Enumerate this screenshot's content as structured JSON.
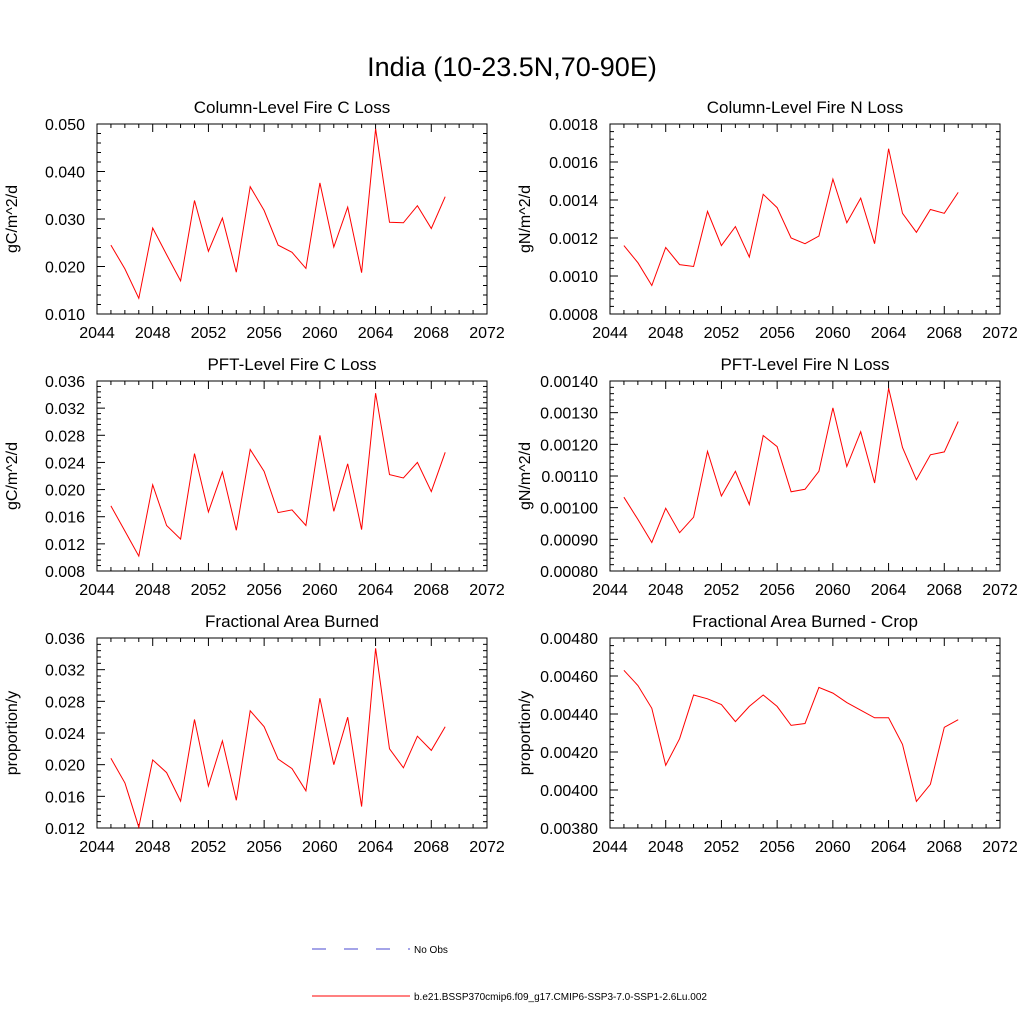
{
  "figure": {
    "title": "India (10-23.5N,70-90E)"
  },
  "legend": {
    "entries": [
      {
        "label": "No Obs",
        "color": "#4a4ad0",
        "dash": true
      },
      {
        "label": "b.e21.BSSP370cmip6.f09_g17.CMIP6-SSP3-7.0-SSP1-2.6Lu.002",
        "color": "#ff0000",
        "dash": false
      }
    ]
  },
  "chart_data": [
    {
      "type": "line",
      "title": "Column-Level Fire C Loss",
      "ylabel": "gC/m^2/d",
      "xlim": [
        2044,
        2072
      ],
      "xticks": [
        "2044",
        "2048",
        "2052",
        "2056",
        "2060",
        "2064",
        "2068",
        "2072"
      ],
      "ylim": [
        0.01,
        0.05
      ],
      "yticks": [
        "0.010",
        "0.020",
        "0.030",
        "0.040",
        "0.050"
      ],
      "color": "#ff0000",
      "x": [
        2045,
        2046,
        2047,
        2048,
        2049,
        2050,
        2051,
        2052,
        2053,
        2054,
        2055,
        2056,
        2057,
        2058,
        2059,
        2060,
        2061,
        2062,
        2063,
        2064,
        2065,
        2066,
        2067,
        2068,
        2069
      ],
      "values": [
        0.0245,
        0.0195,
        0.0133,
        0.0281,
        0.0225,
        0.017,
        0.0339,
        0.0232,
        0.0302,
        0.0188,
        0.0368,
        0.0318,
        0.0245,
        0.023,
        0.0196,
        0.0376,
        0.0241,
        0.0325,
        0.0187,
        0.049,
        0.0293,
        0.0292,
        0.0328,
        0.028,
        0.0347
      ]
    },
    {
      "type": "line",
      "title": "Column-Level Fire N Loss",
      "ylabel": "gN/m^2/d",
      "xlim": [
        2044,
        2072
      ],
      "xticks": [
        "2044",
        "2048",
        "2052",
        "2056",
        "2060",
        "2064",
        "2068",
        "2072"
      ],
      "ylim": [
        0.0008,
        0.0018
      ],
      "yticks": [
        "0.0008",
        "0.0010",
        "0.0012",
        "0.0014",
        "0.0016",
        "0.0018"
      ],
      "color": "#ff0000",
      "x": [
        2045,
        2046,
        2047,
        2048,
        2049,
        2050,
        2051,
        2052,
        2053,
        2054,
        2055,
        2056,
        2057,
        2058,
        2059,
        2060,
        2061,
        2062,
        2063,
        2064,
        2065,
        2066,
        2067,
        2068,
        2069
      ],
      "values": [
        0.00116,
        0.00107,
        0.00095,
        0.00115,
        0.00106,
        0.00105,
        0.00134,
        0.00116,
        0.00126,
        0.0011,
        0.00143,
        0.00136,
        0.0012,
        0.00117,
        0.00121,
        0.00151,
        0.00128,
        0.00141,
        0.00117,
        0.00167,
        0.00133,
        0.00123,
        0.00135,
        0.00133,
        0.00144
      ]
    },
    {
      "type": "line",
      "title": "PFT-Level Fire C Loss",
      "ylabel": "gC/m^2/d",
      "xlim": [
        2044,
        2072
      ],
      "xticks": [
        "2044",
        "2048",
        "2052",
        "2056",
        "2060",
        "2064",
        "2068",
        "2072"
      ],
      "ylim": [
        0.008,
        0.036
      ],
      "yticks": [
        "0.008",
        "0.012",
        "0.016",
        "0.020",
        "0.024",
        "0.028",
        "0.032",
        "0.036"
      ],
      "color": "#ff0000",
      "x": [
        2045,
        2046,
        2047,
        2048,
        2049,
        2050,
        2051,
        2052,
        2053,
        2054,
        2055,
        2056,
        2057,
        2058,
        2059,
        2060,
        2061,
        2062,
        2063,
        2064,
        2065,
        2066,
        2067,
        2068,
        2069
      ],
      "values": [
        0.0176,
        0.0139,
        0.0102,
        0.0207,
        0.0147,
        0.0127,
        0.0253,
        0.0167,
        0.0226,
        0.014,
        0.0259,
        0.0227,
        0.0166,
        0.017,
        0.0147,
        0.028,
        0.0168,
        0.0238,
        0.0141,
        0.0342,
        0.0222,
        0.0217,
        0.024,
        0.0197,
        0.0255
      ]
    },
    {
      "type": "line",
      "title": "PFT-Level Fire N Loss",
      "ylabel": "gN/m^2/d",
      "xlim": [
        2044,
        2072
      ],
      "xticks": [
        "2044",
        "2048",
        "2052",
        "2056",
        "2060",
        "2064",
        "2068",
        "2072"
      ],
      "ylim": [
        0.0008,
        0.0014
      ],
      "yticks": [
        "0.00080",
        "0.00090",
        "0.00100",
        "0.00110",
        "0.00120",
        "0.00130",
        "0.00140"
      ],
      "color": "#ff0000",
      "x": [
        2045,
        2046,
        2047,
        2048,
        2049,
        2050,
        2051,
        2052,
        2053,
        2054,
        2055,
        2056,
        2057,
        2058,
        2059,
        2060,
        2061,
        2062,
        2063,
        2064,
        2065,
        2066,
        2067,
        2068,
        2069
      ],
      "values": [
        0.001033,
        0.000963,
        0.00089,
        0.000998,
        0.000921,
        0.00097,
        0.001178,
        0.001037,
        0.001115,
        0.00101,
        0.001228,
        0.001193,
        0.00105,
        0.001058,
        0.001115,
        0.001315,
        0.00113,
        0.00124,
        0.001078,
        0.001377,
        0.00119,
        0.001088,
        0.001167,
        0.001176,
        0.001272
      ]
    },
    {
      "type": "line",
      "title": "Fractional Area Burned",
      "ylabel": "proportion/y",
      "xlim": [
        2044,
        2072
      ],
      "xticks": [
        "2044",
        "2048",
        "2052",
        "2056",
        "2060",
        "2064",
        "2068",
        "2072"
      ],
      "ylim": [
        0.012,
        0.036
      ],
      "yticks": [
        "0.012",
        "0.016",
        "0.020",
        "0.024",
        "0.028",
        "0.032",
        "0.036"
      ],
      "color": "#ff0000",
      "x": [
        2045,
        2046,
        2047,
        2048,
        2049,
        2050,
        2051,
        2052,
        2053,
        2054,
        2055,
        2056,
        2057,
        2058,
        2059,
        2060,
        2061,
        2062,
        2063,
        2064,
        2065,
        2066,
        2067,
        2068,
        2069
      ],
      "values": [
        0.0208,
        0.0177,
        0.0121,
        0.0206,
        0.019,
        0.0154,
        0.0257,
        0.0173,
        0.023,
        0.0155,
        0.0268,
        0.0248,
        0.0207,
        0.0195,
        0.0167,
        0.0284,
        0.02,
        0.026,
        0.0147,
        0.0347,
        0.022,
        0.0196,
        0.0236,
        0.0218,
        0.0248
      ]
    },
    {
      "type": "line",
      "title": "Fractional Area Burned - Crop",
      "ylabel": "proportion/y",
      "xlim": [
        2044,
        2072
      ],
      "xticks": [
        "2044",
        "2048",
        "2052",
        "2056",
        "2060",
        "2064",
        "2068",
        "2072"
      ],
      "ylim": [
        0.0038,
        0.0048
      ],
      "yticks": [
        "0.00380",
        "0.00400",
        "0.00420",
        "0.00440",
        "0.00460",
        "0.00480"
      ],
      "color": "#ff0000",
      "x": [
        2045,
        2046,
        2047,
        2048,
        2049,
        2050,
        2051,
        2052,
        2053,
        2054,
        2055,
        2056,
        2057,
        2058,
        2059,
        2060,
        2061,
        2062,
        2063,
        2064,
        2065,
        2066,
        2067,
        2068,
        2069
      ],
      "values": [
        0.00463,
        0.00455,
        0.00443,
        0.00413,
        0.00427,
        0.0045,
        0.00448,
        0.00445,
        0.00436,
        0.00444,
        0.0045,
        0.00444,
        0.00434,
        0.00435,
        0.00454,
        0.00451,
        0.00446,
        0.00442,
        0.00438,
        0.00438,
        0.00424,
        0.00394,
        0.00403,
        0.00433,
        0.00437
      ]
    }
  ]
}
